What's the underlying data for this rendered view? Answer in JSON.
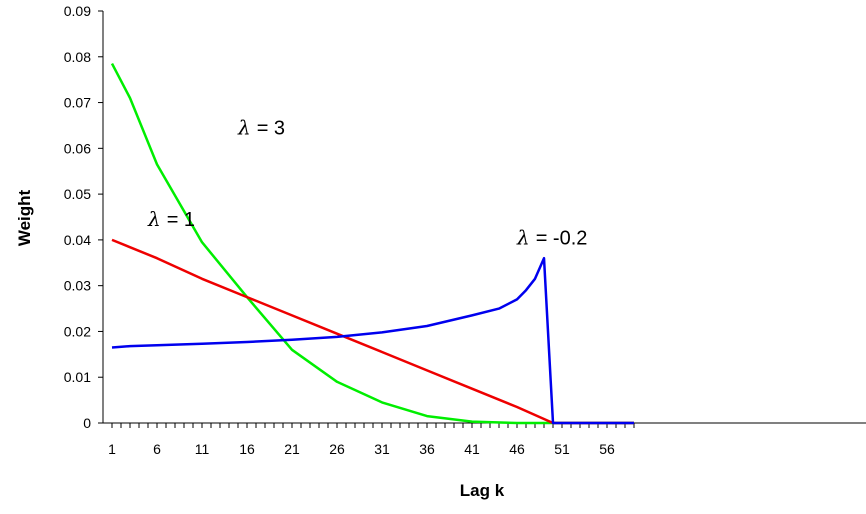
{
  "chart_data": {
    "type": "line",
    "xlabel": "Lag k",
    "ylabel": "Weight",
    "xlim": [
      1,
      59
    ],
    "ylim": [
      0,
      0.09
    ],
    "y_ticks": [
      "0",
      "0.01",
      "0.02",
      "0.03",
      "0.04",
      "0.05",
      "0.06",
      "0.07",
      "0.08",
      "0.09"
    ],
    "x_tick_labels": [
      "1",
      "6",
      "11",
      "16",
      "21",
      "26",
      "31",
      "36",
      "41",
      "46",
      "51",
      "56"
    ],
    "grid": false,
    "legend": "none",
    "annotations": [
      {
        "symbol": "λ",
        "text": "= 3",
        "series": "lambda_3",
        "at": [
          15,
          0.063
        ]
      },
      {
        "symbol": "λ",
        "text": "= 1",
        "series": "lambda_1",
        "at": [
          5,
          0.043
        ]
      },
      {
        "symbol": "λ",
        "text": "= -0.2",
        "series": "lambda_neg0_2",
        "at": [
          46,
          0.039
        ]
      }
    ],
    "series": [
      {
        "key": "lambda_3",
        "color": "#00ee00",
        "x": [
          1,
          3,
          6,
          11,
          16,
          21,
          26,
          31,
          36,
          41,
          46,
          50,
          59
        ],
        "y": [
          0.0785,
          0.071,
          0.0565,
          0.0395,
          0.0275,
          0.016,
          0.009,
          0.0045,
          0.0015,
          0.0003,
          0,
          0,
          0
        ]
      },
      {
        "key": "lambda_1",
        "color": "#ee0000",
        "x": [
          1,
          6,
          11,
          16,
          21,
          26,
          31,
          36,
          41,
          46,
          50,
          59
        ],
        "y": [
          0.04,
          0.036,
          0.0315,
          0.0275,
          0.0235,
          0.0195,
          0.0155,
          0.0115,
          0.0075,
          0.0035,
          0,
          0
        ]
      },
      {
        "key": "lambda_neg0_2",
        "color": "#0000ee",
        "x": [
          1,
          3,
          6,
          11,
          16,
          21,
          26,
          31,
          36,
          41,
          44,
          46,
          47,
          48,
          49,
          50,
          51,
          59
        ],
        "y": [
          0.0165,
          0.0168,
          0.017,
          0.0173,
          0.0177,
          0.0182,
          0.0188,
          0.0198,
          0.0212,
          0.0235,
          0.025,
          0.027,
          0.029,
          0.0315,
          0.036,
          0.0,
          0,
          0
        ]
      }
    ]
  }
}
